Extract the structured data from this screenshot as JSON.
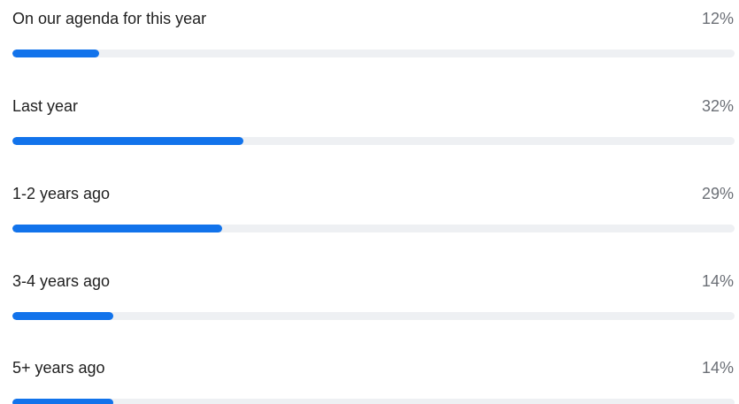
{
  "chart_data": {
    "type": "bar",
    "categories": [
      "On our agenda for this year",
      "Last year",
      "1-2 years ago",
      "3-4 years ago",
      "5+ years ago"
    ],
    "values": [
      12,
      32,
      29,
      14,
      14
    ],
    "value_labels": [
      "12%",
      "32%",
      "29%",
      "14%",
      "14%"
    ],
    "unit": "%",
    "xlim": [
      0,
      100
    ],
    "orientation": "horizontal",
    "colors": {
      "bar": "#1273eb",
      "track": "#eef0f3",
      "label": "#1f1f1f",
      "value_label": "#6b6f76"
    }
  }
}
